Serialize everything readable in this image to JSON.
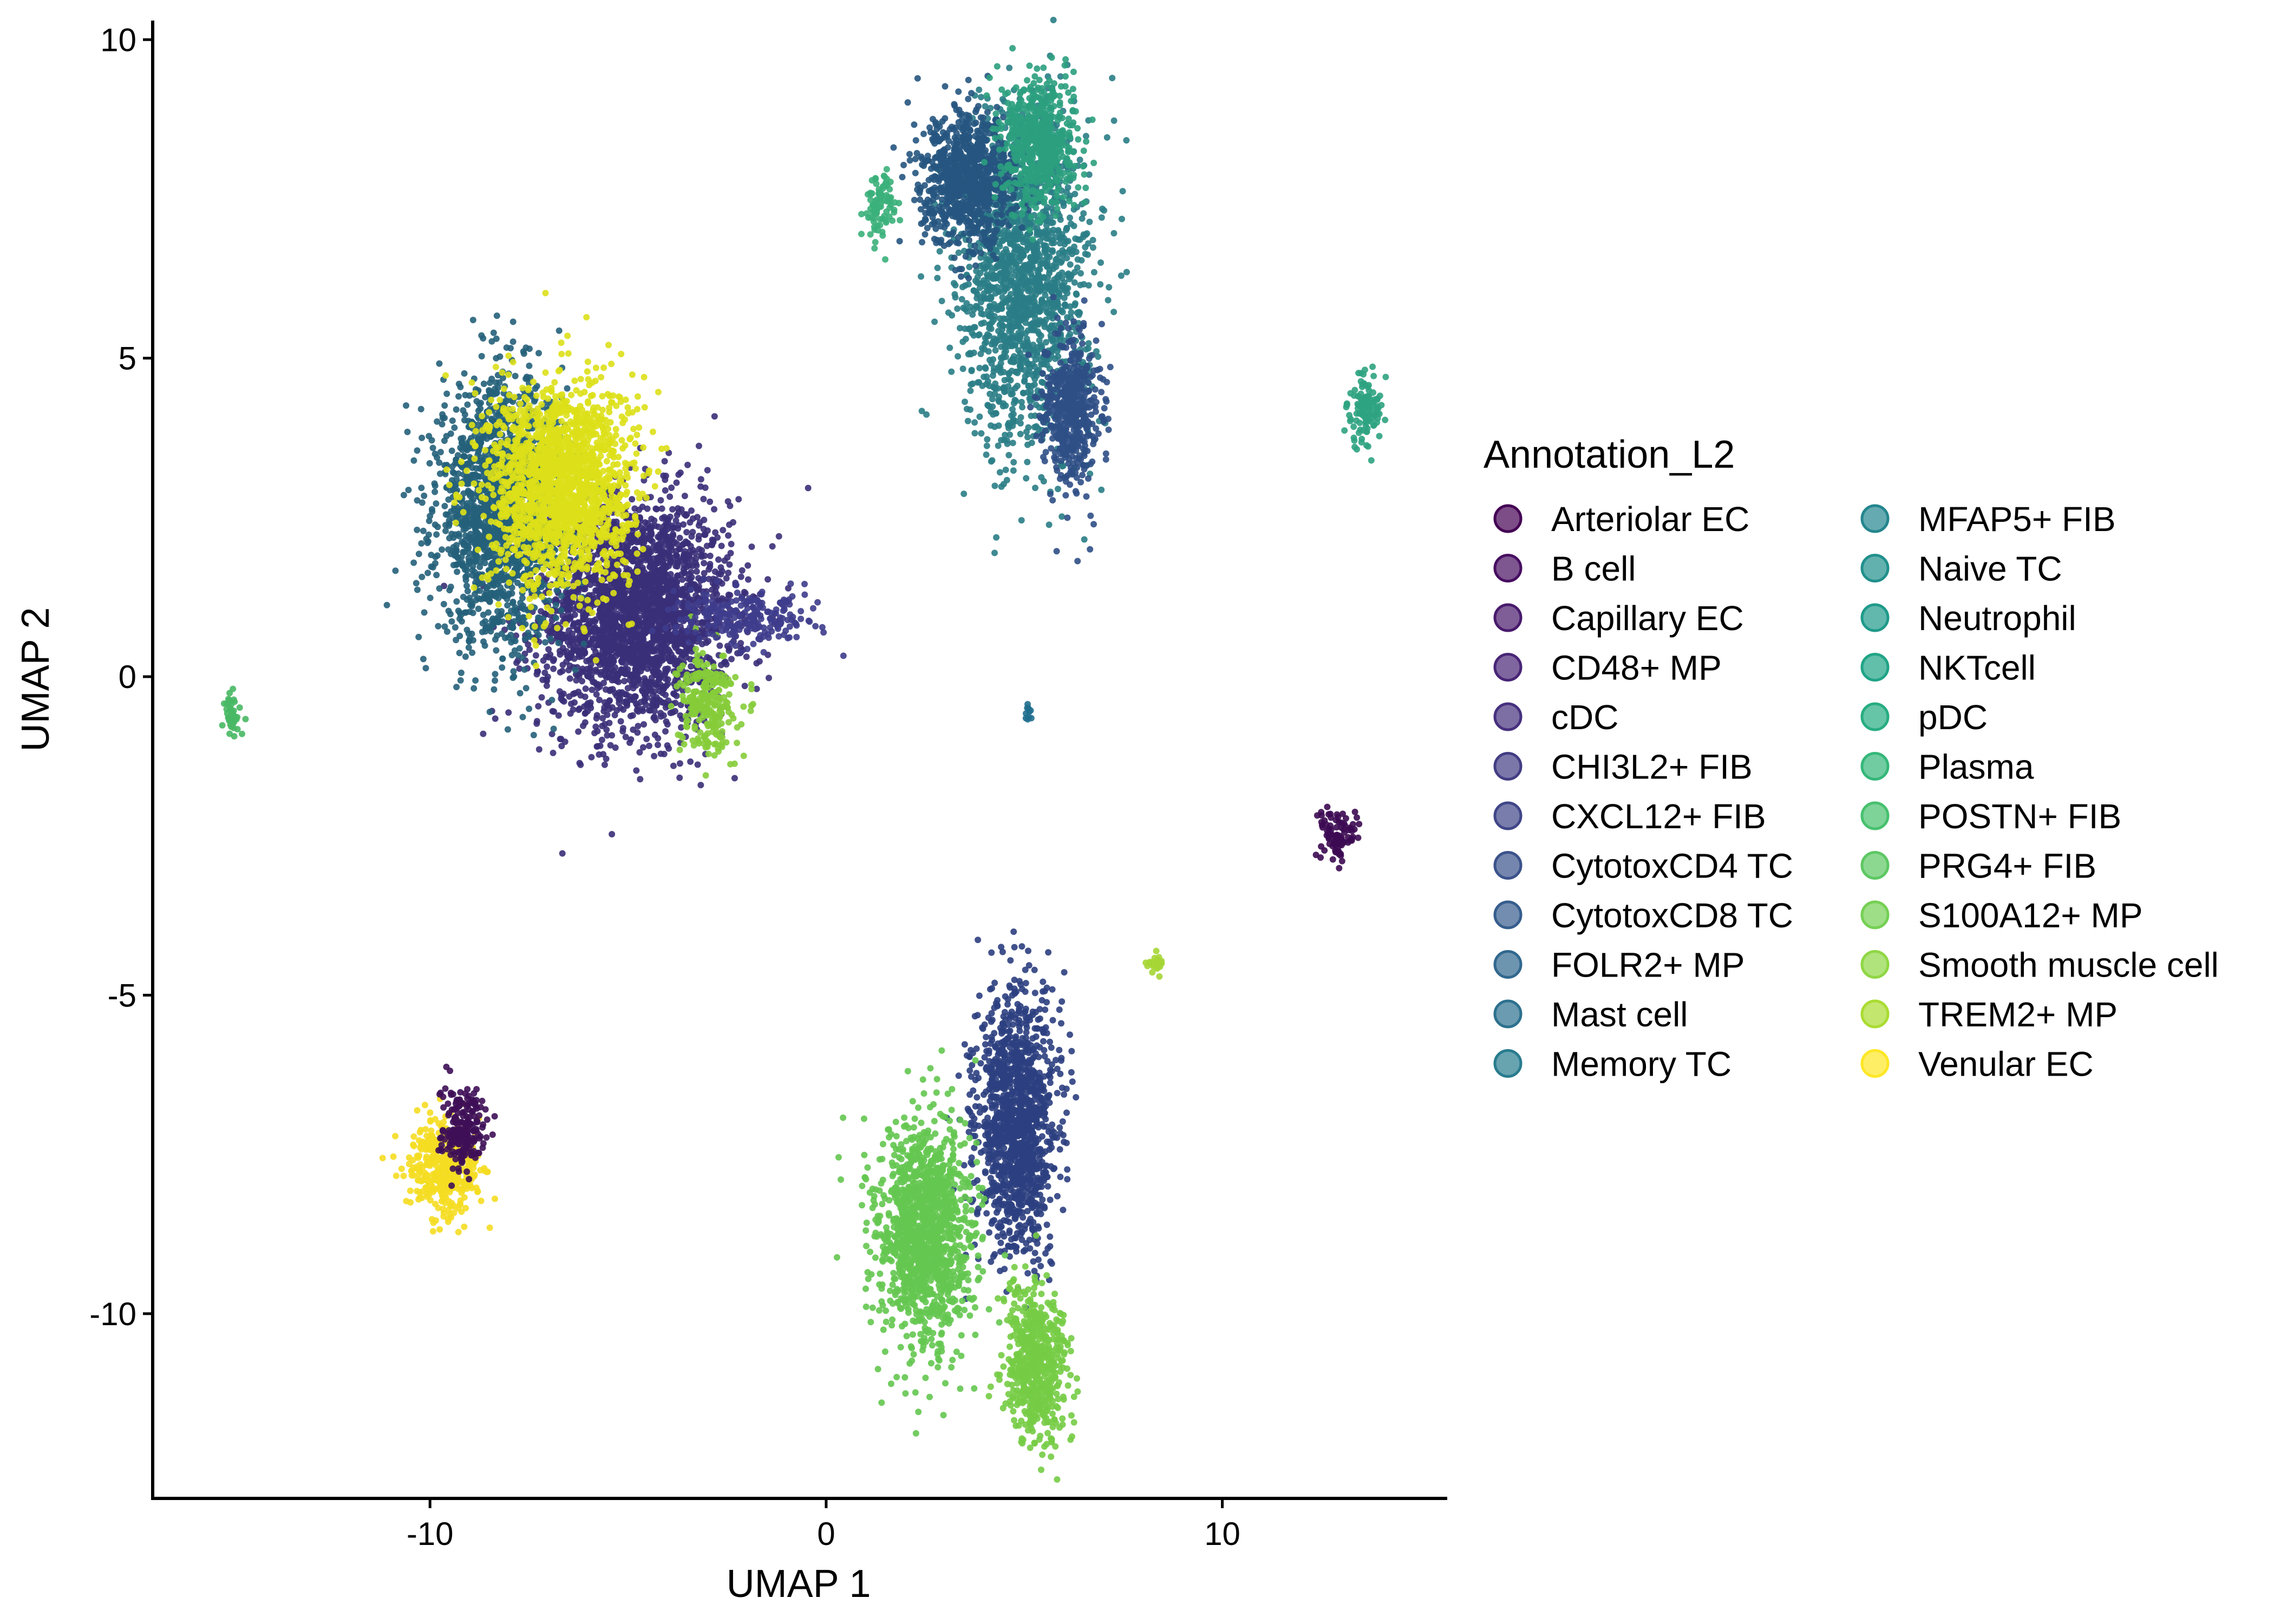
{
  "chart_data": {
    "type": "scatter",
    "title": "",
    "xlabel": "UMAP 1",
    "ylabel": "UMAP 2",
    "xlim": [
      -17,
      15.5
    ],
    "ylim": [
      -12.9,
      10.3
    ],
    "x_ticks": [
      -10,
      0,
      10
    ],
    "x_tick_labels": [
      "-10",
      "0",
      "10"
    ],
    "y_ticks": [
      -10,
      -5,
      0,
      5,
      10
    ],
    "y_tick_labels": [
      "-10",
      "-5",
      "0",
      "5",
      "10"
    ],
    "grid": false,
    "legend_position": "right",
    "legend": {
      "title": "Annotation_L2",
      "columns": 2
    },
    "series": [
      {
        "name": "Arteriolar EC",
        "color": "#440154"
      },
      {
        "name": "B cell",
        "color": "#470E61"
      },
      {
        "name": "Capillary EC",
        "color": "#481A6C"
      },
      {
        "name": "CD48+ MP",
        "color": "#482576"
      },
      {
        "name": "cDC",
        "color": "#46307E"
      },
      {
        "name": "CHI3L2+ FIB",
        "color": "#433D84"
      },
      {
        "name": "CXCL12+ FIB",
        "color": "#404688"
      },
      {
        "name": "CytotoxCD4 TC",
        "color": "#3B528B"
      },
      {
        "name": "CytotoxCD8 TC",
        "color": "#365D8D"
      },
      {
        "name": "FOLR2+ MP",
        "color": "#31688E"
      },
      {
        "name": "Mast cell",
        "color": "#2C718E"
      },
      {
        "name": "Memory TC",
        "color": "#287C8E"
      },
      {
        "name": "MFAP5+ FIB",
        "color": "#24868E"
      },
      {
        "name": "Naive TC",
        "color": "#21908C"
      },
      {
        "name": "Neutrophil",
        "color": "#1F9A8A"
      },
      {
        "name": "NKTcell",
        "color": "#20A486"
      },
      {
        "name": "pDC",
        "color": "#27AD81"
      },
      {
        "name": "Plasma",
        "color": "#35B779"
      },
      {
        "name": "POSTN+ FIB",
        "color": "#47C16E"
      },
      {
        "name": "PRG4+ FIB",
        "color": "#5DC863"
      },
      {
        "name": "S100A12+ MP",
        "color": "#75D054"
      },
      {
        "name": "Smooth muscle cell",
        "color": "#8FD744"
      },
      {
        "name": "TREM2+ MP",
        "color": "#AADC32"
      },
      {
        "name": "Venular EC",
        "color": "#FDE725"
      }
    ],
    "clusters": [
      {
        "series": "Capillary EC",
        "color": "#3A2F78",
        "x": -4.8,
        "y": 1.0,
        "sx": 1.2,
        "sy": 0.9,
        "n": 2600
      },
      {
        "series": "FOLR2+ MP",
        "color": "#25607A",
        "x": -8.2,
        "y": 2.6,
        "sx": 0.8,
        "sy": 1.0,
        "n": 1800
      },
      {
        "series": "TREM2+ MP",
        "color": "#DDE018",
        "x": -6.7,
        "y": 3.0,
        "sx": 0.9,
        "sy": 0.8,
        "n": 1800
      },
      {
        "series": "S100A12+ MP",
        "color": "#86CC3A",
        "x": -3.0,
        "y": -0.4,
        "sx": 0.35,
        "sy": 0.4,
        "n": 260
      },
      {
        "series": "CD48+ MP",
        "color": "#3E3C8C",
        "x": -2.0,
        "y": 0.9,
        "sx": 0.9,
        "sy": 0.2,
        "n": 220
      },
      {
        "series": "Naive TC",
        "color": "#2A7D86",
        "x": 5.0,
        "y": 6.2,
        "sx": 0.8,
        "sy": 1.3,
        "n": 1600
      },
      {
        "series": "CytotoxCD8 TC",
        "color": "#26557F",
        "x": 3.6,
        "y": 7.8,
        "sx": 0.6,
        "sy": 0.5,
        "n": 900
      },
      {
        "series": "Neutrophil",
        "color": "#2B9E7E",
        "x": 5.4,
        "y": 8.4,
        "sx": 0.45,
        "sy": 0.5,
        "n": 600
      },
      {
        "series": "CytotoxCD4 TC",
        "color": "#2F4F86",
        "x": 6.2,
        "y": 4.2,
        "sx": 0.35,
        "sy": 0.6,
        "n": 500
      },
      {
        "series": "Plasma",
        "color": "#3BB07A",
        "x": 1.4,
        "y": 7.4,
        "sx": 0.2,
        "sy": 0.25,
        "n": 90
      },
      {
        "series": "CXCL12+ FIB",
        "color": "#2C3F7F",
        "x": 4.8,
        "y": -7.0,
        "sx": 0.5,
        "sy": 1.0,
        "n": 1300
      },
      {
        "series": "PRG4+ FIB",
        "color": "#64C650",
        "x": 2.5,
        "y": -8.8,
        "sx": 0.6,
        "sy": 0.9,
        "n": 1300
      },
      {
        "series": "POSTN+ FIB",
        "color": "#75CC45",
        "x": 5.3,
        "y": -10.8,
        "sx": 0.4,
        "sy": 0.6,
        "n": 600
      },
      {
        "series": "Venular EC",
        "color": "#F5DD22",
        "x": -9.6,
        "y": -7.7,
        "sx": 0.45,
        "sy": 0.35,
        "n": 420
      },
      {
        "series": "Arteriolar EC",
        "color": "#3E0F57",
        "x": -9.2,
        "y": -7.1,
        "sx": 0.3,
        "sy": 0.3,
        "n": 200
      },
      {
        "series": "MFAP5+ FIB",
        "color": "#2FA381",
        "x": 13.6,
        "y": 4.2,
        "sx": 0.2,
        "sy": 0.3,
        "n": 120
      },
      {
        "series": "B cell",
        "color": "#3C0A52",
        "x": 12.9,
        "y": -2.5,
        "sx": 0.2,
        "sy": 0.2,
        "n": 90
      },
      {
        "series": "pDC",
        "color": "#48B864",
        "x": -15.0,
        "y": -0.6,
        "sx": 0.12,
        "sy": 0.2,
        "n": 40
      },
      {
        "series": "Smooth muscle cell",
        "color": "#A5D635",
        "x": 8.3,
        "y": -4.5,
        "sx": 0.1,
        "sy": 0.1,
        "n": 25
      },
      {
        "series": "Mast cell",
        "color": "#1F6E8E",
        "x": 5.1,
        "y": -0.55,
        "sx": 0.05,
        "sy": 0.08,
        "n": 10
      }
    ]
  }
}
